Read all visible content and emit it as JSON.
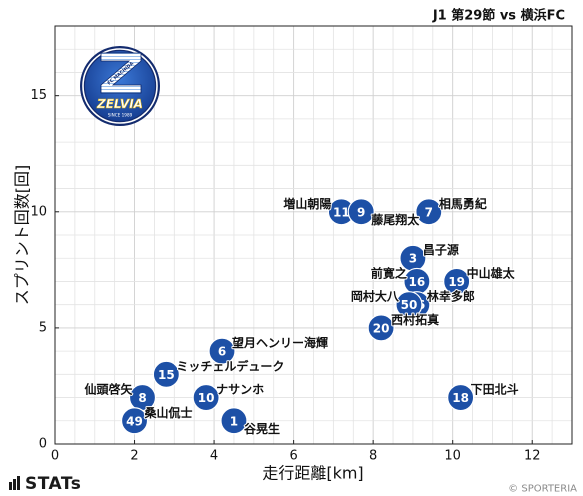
{
  "logo": {
    "club": "FC MACHIDA",
    "name": "ZELVIA",
    "since": "SINCE 1989"
  },
  "chart_data": {
    "type": "scatter",
    "title": "J1 第29節 vs 横浜FC",
    "xlabel": "走行距離[km]",
    "ylabel": "スプリント回数[回]",
    "xlim": [
      0,
      13
    ],
    "ylim": [
      0,
      18
    ],
    "xticks": [
      0,
      2,
      4,
      6,
      8,
      10,
      12
    ],
    "yticks": [
      0,
      5,
      10,
      15
    ],
    "grid": true,
    "marker_color": "#1d50a6",
    "points": [
      {
        "number": "11",
        "name": "増山朝陽",
        "x": 7.2,
        "y": 10
      },
      {
        "number": "9",
        "name": "藤尾翔太",
        "x": 7.7,
        "y": 10
      },
      {
        "number": "7",
        "name": "相馬勇紀",
        "x": 9.4,
        "y": 10
      },
      {
        "number": "3",
        "name": "昌子源",
        "x": 9.0,
        "y": 8
      },
      {
        "number": "16",
        "name": "前寛之",
        "x": 9.1,
        "y": 7
      },
      {
        "number": "19",
        "name": "中山雄太",
        "x": 10.1,
        "y": 7
      },
      {
        "number": "26",
        "name": "林幸多郎",
        "x": 9.1,
        "y": 6
      },
      {
        "number": "50",
        "name": "岡村大八",
        "x": 8.9,
        "y": 6
      },
      {
        "number": "20",
        "name": "西村拓真",
        "x": 8.2,
        "y": 5
      },
      {
        "number": "6",
        "name": "望月ヘンリー海輝",
        "x": 4.2,
        "y": 4
      },
      {
        "number": "15",
        "name": "ミッチェルデューク",
        "x": 2.8,
        "y": 3
      },
      {
        "number": "10",
        "name": "ナサンホ",
        "x": 3.8,
        "y": 2
      },
      {
        "number": "8",
        "name": "仙頭啓矢",
        "x": 2.2,
        "y": 2
      },
      {
        "number": "49",
        "name": "桑山侃士",
        "x": 2.0,
        "y": 1
      },
      {
        "number": "1",
        "name": "谷晃生",
        "x": 4.5,
        "y": 1
      },
      {
        "number": "18",
        "name": "下田北斗",
        "x": 10.2,
        "y": 2
      }
    ]
  },
  "footer": {
    "brand": "STATs",
    "copyright": "© SPORTERIA"
  }
}
